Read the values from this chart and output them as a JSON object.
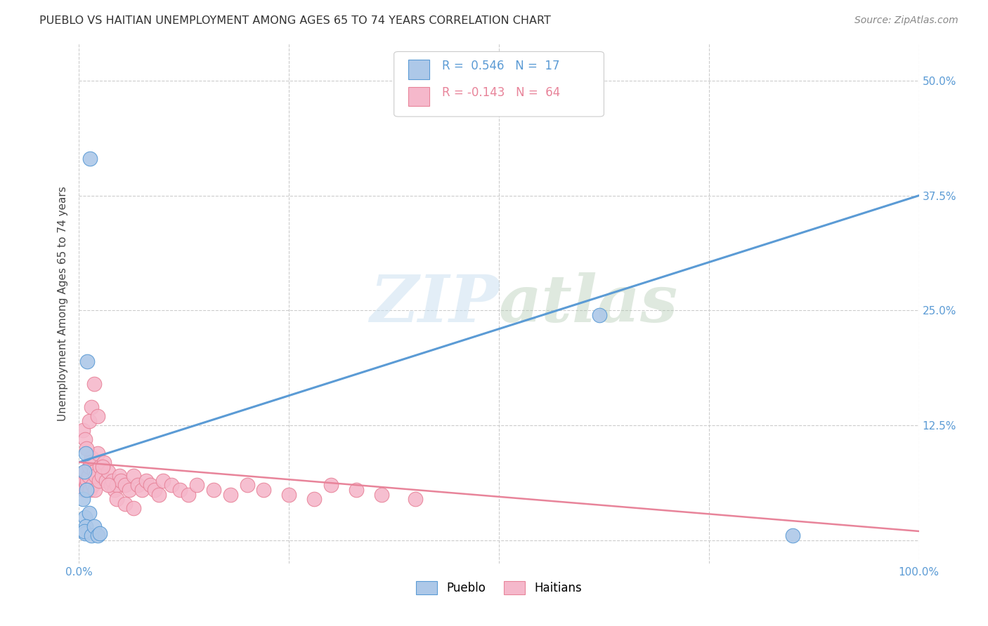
{
  "title": "PUEBLO VS HAITIAN UNEMPLOYMENT AMONG AGES 65 TO 74 YEARS CORRELATION CHART",
  "source": "Source: ZipAtlas.com",
  "ylabel": "Unemployment Among Ages 65 to 74 years",
  "xlim": [
    0,
    1.0
  ],
  "ylim": [
    -0.025,
    0.54
  ],
  "x_ticks": [
    0.0,
    0.25,
    0.5,
    0.75,
    1.0
  ],
  "x_tick_labels": [
    "0.0%",
    "",
    "",
    "",
    "100.0%"
  ],
  "y_ticks": [
    0.0,
    0.125,
    0.25,
    0.375,
    0.5
  ],
  "y_tick_labels": [
    "",
    "12.5%",
    "25.0%",
    "37.5%",
    "50.0%"
  ],
  "pueblo_R": 0.546,
  "pueblo_N": 17,
  "haitian_R": -0.143,
  "haitian_N": 64,
  "pueblo_color": "#adc8e8",
  "haitian_color": "#f5b8cb",
  "pueblo_line_color": "#5b9bd5",
  "haitian_line_color": "#e8849a",
  "background_color": "#ffffff",
  "grid_color": "#cccccc",
  "watermark_color": "#c8dff0",
  "pueblo_points_x": [
    0.008,
    0.01,
    0.006,
    0.005,
    0.007,
    0.009,
    0.012,
    0.008,
    0.007,
    0.006,
    0.013,
    0.015,
    0.018,
    0.022,
    0.025,
    0.62,
    0.85
  ],
  "pueblo_points_y": [
    0.095,
    0.195,
    0.075,
    0.045,
    0.025,
    0.055,
    0.03,
    0.015,
    0.008,
    0.01,
    0.415,
    0.005,
    0.015,
    0.005,
    0.008,
    0.245,
    0.005
  ],
  "haitian_points_x": [
    0.004,
    0.006,
    0.007,
    0.008,
    0.009,
    0.01,
    0.011,
    0.012,
    0.013,
    0.014,
    0.015,
    0.016,
    0.018,
    0.019,
    0.02,
    0.022,
    0.024,
    0.025,
    0.027,
    0.03,
    0.032,
    0.035,
    0.038,
    0.04,
    0.042,
    0.045,
    0.048,
    0.05,
    0.055,
    0.06,
    0.065,
    0.07,
    0.075,
    0.08,
    0.085,
    0.09,
    0.095,
    0.1,
    0.11,
    0.12,
    0.13,
    0.14,
    0.16,
    0.18,
    0.2,
    0.22,
    0.25,
    0.28,
    0.3,
    0.33,
    0.36,
    0.4,
    0.005,
    0.007,
    0.009,
    0.012,
    0.015,
    0.018,
    0.022,
    0.028,
    0.035,
    0.045,
    0.055,
    0.065
  ],
  "haitian_points_y": [
    0.07,
    0.055,
    0.065,
    0.075,
    0.06,
    0.065,
    0.07,
    0.08,
    0.055,
    0.085,
    0.09,
    0.06,
    0.075,
    0.055,
    0.07,
    0.095,
    0.065,
    0.08,
    0.07,
    0.085,
    0.065,
    0.075,
    0.06,
    0.065,
    0.055,
    0.06,
    0.07,
    0.065,
    0.06,
    0.055,
    0.07,
    0.06,
    0.055,
    0.065,
    0.06,
    0.055,
    0.05,
    0.065,
    0.06,
    0.055,
    0.05,
    0.06,
    0.055,
    0.05,
    0.06,
    0.055,
    0.05,
    0.045,
    0.06,
    0.055,
    0.05,
    0.045,
    0.12,
    0.11,
    0.1,
    0.13,
    0.145,
    0.17,
    0.135,
    0.08,
    0.06,
    0.045,
    0.04,
    0.035
  ],
  "pueblo_line_x0": 0.0,
  "pueblo_line_y0": 0.085,
  "pueblo_line_x1": 1.0,
  "pueblo_line_y1": 0.375,
  "haitian_line_x0": 0.0,
  "haitian_line_y0": 0.085,
  "haitian_line_x1": 1.0,
  "haitian_line_y1": 0.01
}
